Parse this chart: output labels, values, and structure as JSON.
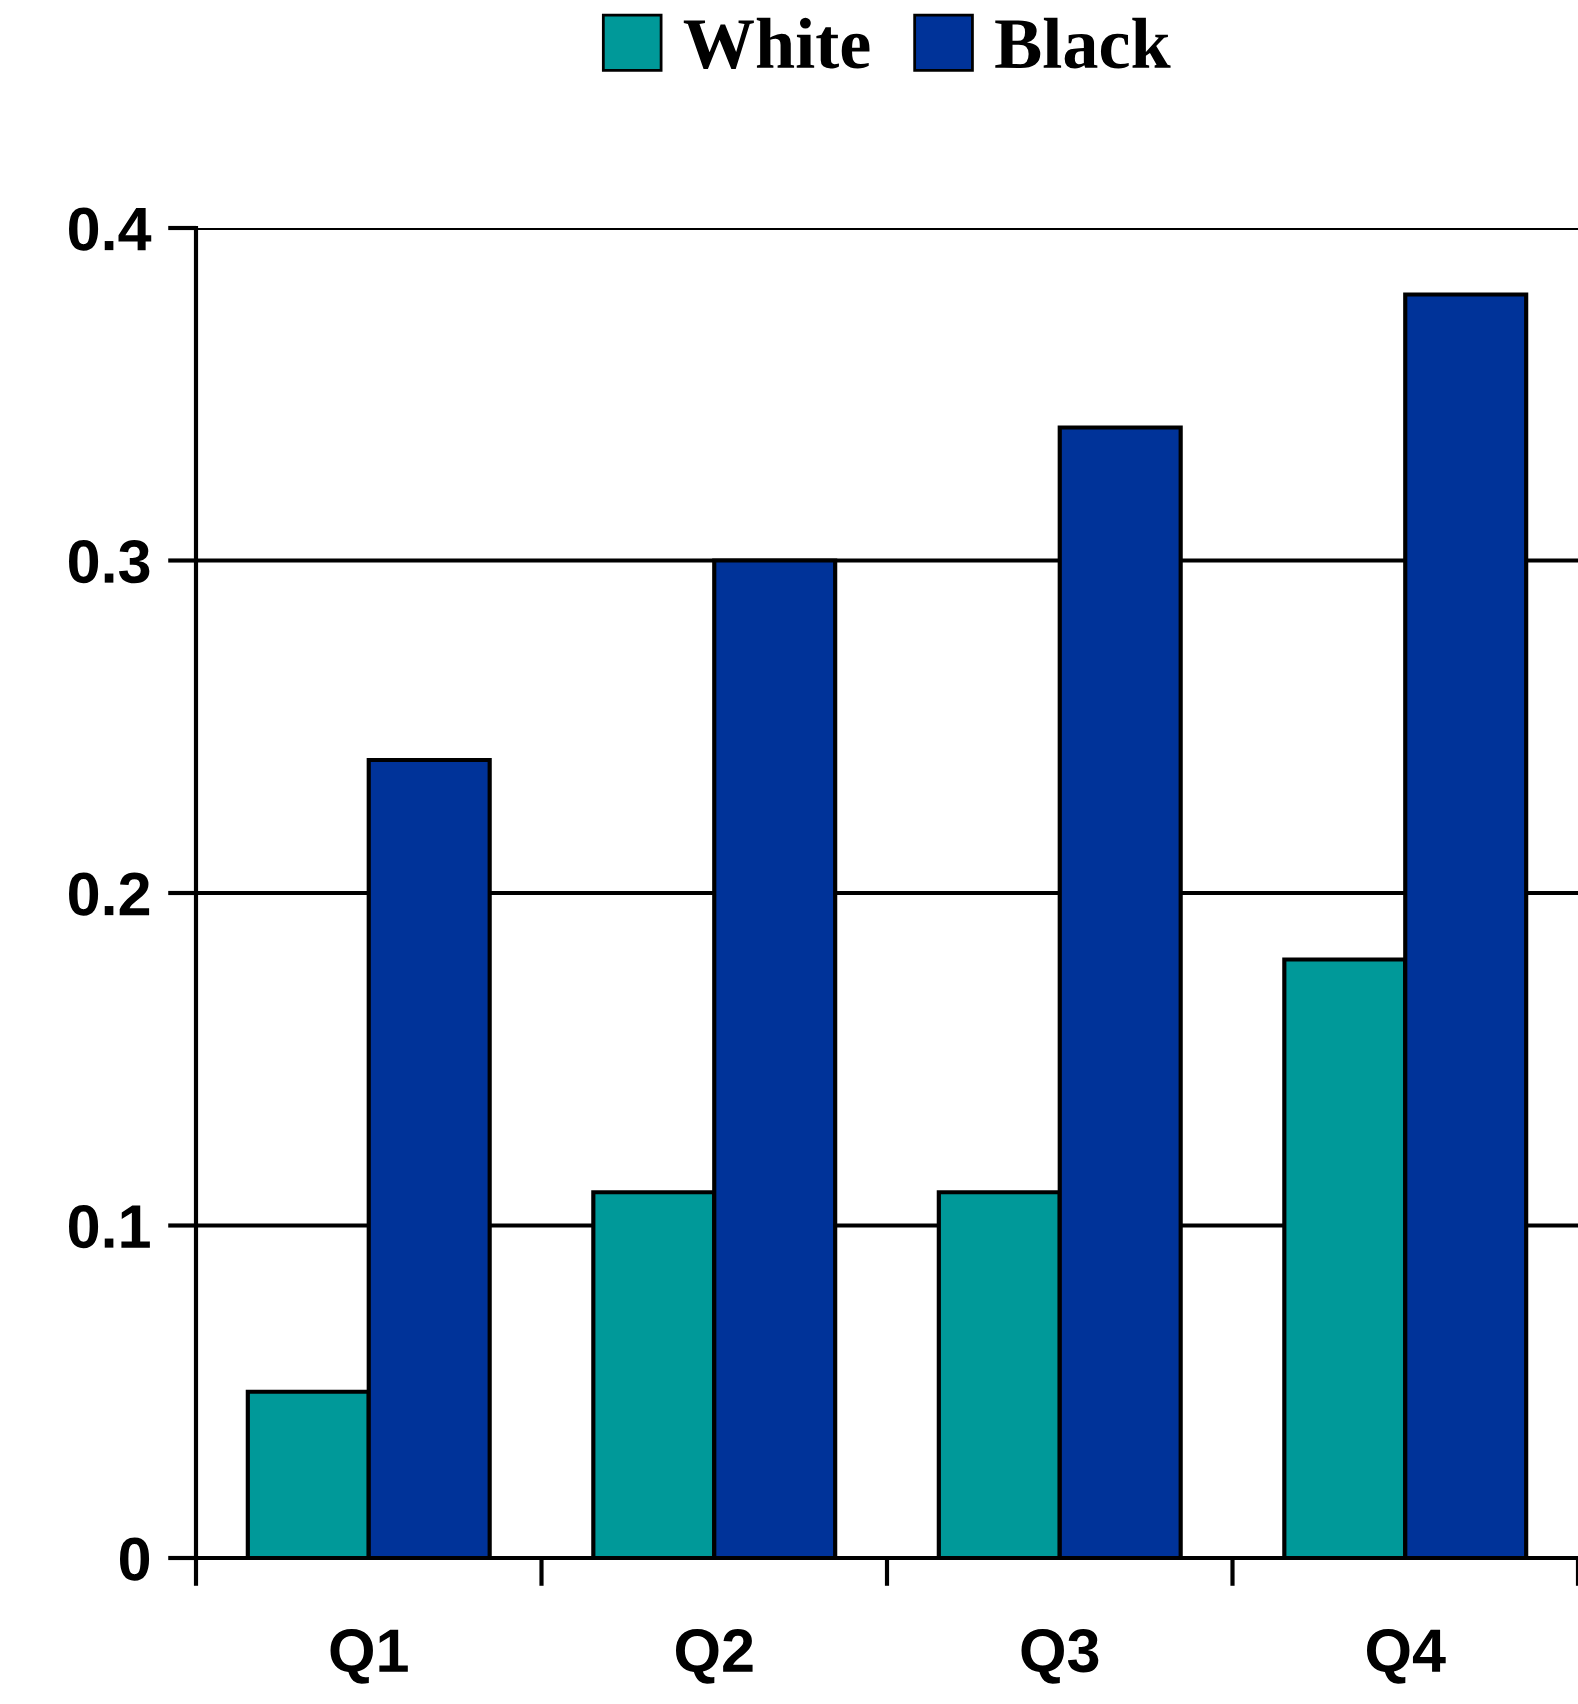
{
  "chart_data": {
    "type": "bar",
    "categories": [
      "Q1",
      "Q2",
      "Q3",
      "Q4"
    ],
    "series": [
      {
        "name": "White",
        "color": "#009999",
        "values": [
          0.05,
          0.11,
          0.11,
          0.18
        ]
      },
      {
        "name": "Black",
        "color": "#003399",
        "values": [
          0.24,
          0.3,
          0.34,
          0.38
        ]
      }
    ],
    "ylim": [
      0,
      0.4
    ],
    "yticks": [
      {
        "value": 0,
        "label": "0"
      },
      0.1,
      0.2,
      0.3,
      0.4
    ],
    "grid": "y",
    "legend": "top"
  }
}
